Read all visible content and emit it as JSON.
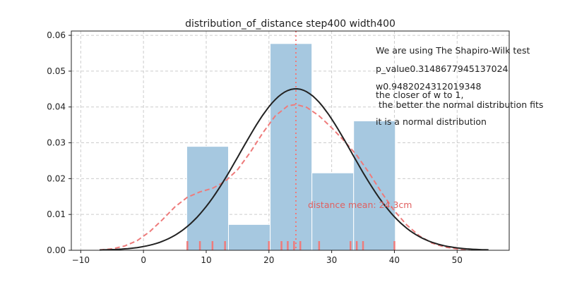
{
  "chart_data": {
    "type": "histogram",
    "title": "distribution_of_distance step400 width400",
    "xlabel": "",
    "ylabel": "",
    "xlim": [
      -11.5,
      58.3
    ],
    "ylim": [
      0,
      0.0612
    ],
    "xticks": [
      -10,
      0,
      10,
      20,
      30,
      40,
      50
    ],
    "xtick_labels": [
      "−10",
      "0",
      "10",
      "20",
      "30",
      "40",
      "50"
    ],
    "yticks": [
      0,
      0.01,
      0.02,
      0.03,
      0.04,
      0.05,
      0.06
    ],
    "ytick_labels": [
      "0.00",
      "0.01",
      "0.02",
      "0.03",
      "0.04",
      "0.05",
      "0.06"
    ],
    "grid": true,
    "histogram": {
      "color": "#a6c8e0",
      "bin_edges": [
        6.9,
        13.55,
        20.2,
        26.85,
        33.5,
        40.15
      ],
      "densities": [
        0.029,
        0.0072,
        0.0577,
        0.0216,
        0.0361
      ]
    },
    "kde": {
      "color": "#ee7b7b",
      "style": "dashed",
      "points": [
        [
          -7,
          0.0001
        ],
        [
          -5,
          0.0004
        ],
        [
          -3,
          0.0012
        ],
        [
          -1,
          0.0027
        ],
        [
          1,
          0.0052
        ],
        [
          3,
          0.0085
        ],
        [
          5,
          0.0121
        ],
        [
          7,
          0.0148
        ],
        [
          9,
          0.0163
        ],
        [
          11,
          0.0173
        ],
        [
          13,
          0.0192
        ],
        [
          15,
          0.0225
        ],
        [
          17,
          0.0273
        ],
        [
          19,
          0.0327
        ],
        [
          21,
          0.0375
        ],
        [
          23,
          0.0403
        ],
        [
          24.3,
          0.0407
        ],
        [
          26,
          0.0399
        ],
        [
          28,
          0.0375
        ],
        [
          30,
          0.0342
        ],
        [
          32,
          0.0305
        ],
        [
          34,
          0.0265
        ],
        [
          36,
          0.0215
        ],
        [
          38,
          0.016
        ],
        [
          40,
          0.011
        ],
        [
          42,
          0.007
        ],
        [
          44,
          0.004
        ],
        [
          46,
          0.002
        ],
        [
          48,
          0.0009
        ],
        [
          50,
          0.0004
        ],
        [
          52,
          0.0001
        ]
      ]
    },
    "normal_fit": {
      "color": "#222222",
      "mean": 24.3,
      "std": 8.85
    },
    "rug": {
      "color": "#ee7b7b",
      "values": [
        7.0,
        9.0,
        11.0,
        13.0,
        20.0,
        22.0,
        23.0,
        24.0,
        25.0,
        28.0,
        33.0,
        34.0,
        35.0,
        40.0
      ]
    },
    "mean_line": {
      "value": 24.3,
      "color": "#ee7b7b",
      "style": "dotted",
      "label": "distance mean: 24.3cm"
    },
    "annotations": [
      "We are using The Shapiro-Wilk test",
      "p_value0.3148677945137024",
      "w0.9482024312019348",
      "the closer of w to 1,",
      " the better the normal distribution fits",
      "it is a normal distribution"
    ]
  }
}
